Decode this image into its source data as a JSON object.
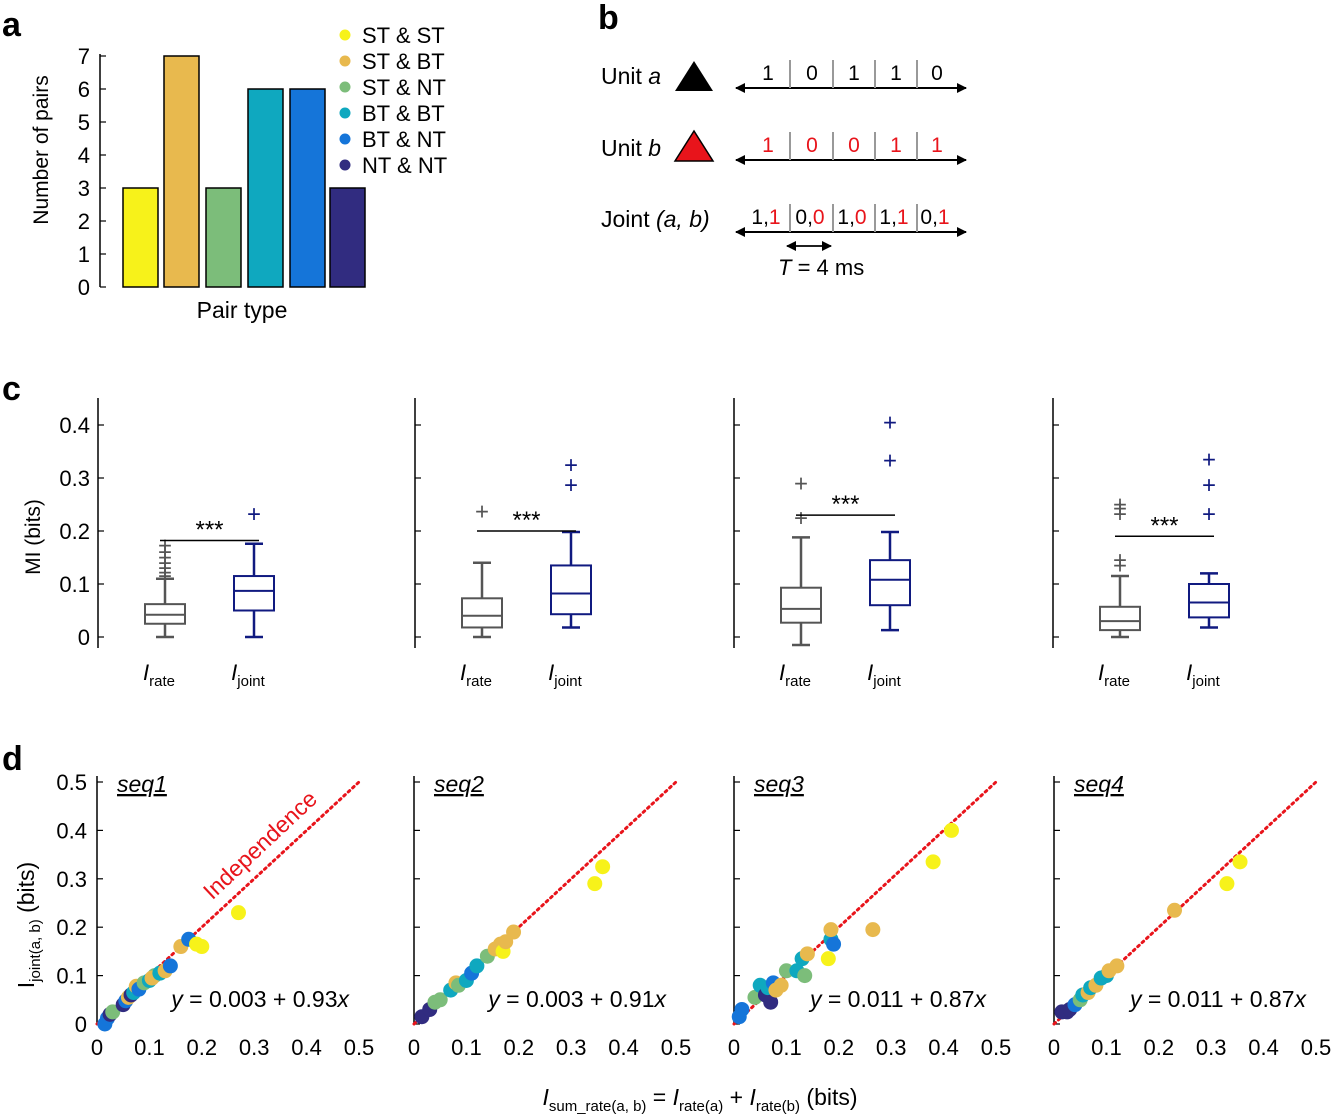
{
  "panel_labels": {
    "a": "a",
    "b": "b",
    "c": "c",
    "d": "d"
  },
  "colors": {
    "ST & ST": "#f7f21a",
    "ST & BT": "#e8b94e",
    "ST & NT": "#7cbd7a",
    "BT & BT": "#0fa8bf",
    "BT & NT": "#1575d9",
    "NT & NT": "#312c80",
    "rate": "#555555",
    "joint": "#101a80",
    "red": "#e8141b"
  },
  "chart_data": [
    {
      "id": "a",
      "type": "bar",
      "categories": [
        "ST & ST",
        "ST & BT",
        "ST & NT",
        "BT & BT",
        "BT & NT",
        "NT & NT"
      ],
      "values": [
        3,
        7,
        3,
        6,
        6,
        3
      ],
      "xlabel": "Pair type",
      "ylabel": "Number of pairs",
      "ylim": [
        0,
        7
      ],
      "yticks": [
        "0",
        "1",
        "2",
        "3",
        "4",
        "5",
        "6",
        "7"
      ],
      "legend": [
        "ST & ST",
        "ST & BT",
        "ST & NT",
        "BT & BT",
        "BT & NT",
        "NT & NT"
      ],
      "legend_position": "right"
    },
    {
      "id": "c",
      "type": "box",
      "ylabel": "MI (bits)",
      "ylim": [
        0,
        0.42
      ],
      "yticks": [
        "0",
        "0.1",
        "0.2",
        "0.3",
        "0.4"
      ],
      "tick_labels": {
        "rate_main": "I",
        "rate_sub": "rate",
        "joint_main": "I",
        "joint_sub": "joint"
      },
      "significance": "***",
      "subplots": [
        {
          "rate": {
            "q1": 0.025,
            "median": 0.042,
            "q3": 0.062,
            "wlo": 0.0,
            "whi": 0.11,
            "outliers": [
              0.115,
              0.122,
              0.13,
              0.14,
              0.15,
              0.16,
              0.173
            ]
          },
          "joint": {
            "q1": 0.05,
            "median": 0.087,
            "q3": 0.115,
            "wlo": 0.0,
            "whi": 0.176,
            "outliers": [
              0.232
            ]
          },
          "bar_y": 0.182
        },
        {
          "rate": {
            "q1": 0.018,
            "median": 0.04,
            "q3": 0.073,
            "wlo": 0.0,
            "whi": 0.14,
            "outliers": [
              0.237
            ]
          },
          "joint": {
            "q1": 0.043,
            "median": 0.082,
            "q3": 0.135,
            "wlo": 0.018,
            "whi": 0.198,
            "outliers": [
              0.287,
              0.325
            ]
          },
          "bar_y": 0.2
        },
        {
          "rate": {
            "q1": 0.027,
            "median": 0.053,
            "q3": 0.093,
            "wlo": -0.015,
            "whi": 0.188,
            "outliers": [
              0.225,
              0.29
            ]
          },
          "joint": {
            "q1": 0.06,
            "median": 0.108,
            "q3": 0.145,
            "wlo": 0.013,
            "whi": 0.198,
            "outliers": [
              0.333,
              0.405
            ]
          },
          "bar_y": 0.23
        },
        {
          "rate": {
            "q1": 0.013,
            "median": 0.03,
            "q3": 0.057,
            "wlo": 0.0,
            "whi": 0.115,
            "outliers": [
              0.135,
              0.145,
              0.232,
              0.242,
              0.25
            ]
          },
          "joint": {
            "q1": 0.037,
            "median": 0.065,
            "q3": 0.1,
            "wlo": 0.018,
            "whi": 0.12,
            "outliers": [
              0.232,
              0.287,
              0.335
            ]
          },
          "bar_y": 0.19
        }
      ]
    },
    {
      "id": "d",
      "type": "scatter",
      "xlim": [
        0,
        0.5
      ],
      "ylim": [
        0,
        0.5
      ],
      "xticks": [
        "0",
        "0.1",
        "0.2",
        "0.3",
        "0.4",
        "0.5"
      ],
      "yticks": [
        "0",
        "0.1",
        "0.2",
        "0.3",
        "0.4",
        "0.5"
      ],
      "ylabel": {
        "main": "I",
        "sub": "joint(a, b)",
        "rest": " (bits)"
      },
      "xlabel": {
        "m1": "I",
        "s1": "sum_rate(a, b)",
        "t1": " = ",
        "m2": "I",
        "s2": "rate(a)",
        "t2": " + ",
        "m3": "I",
        "s3": "rate(b)",
        "t3": " (bits)"
      },
      "reference_line_label": "Independence",
      "subplots": [
        {
          "title": "seq1",
          "fit": {
            "prefix": "y",
            "text": " = 0.003 + 0.93",
            "suffix": "x"
          },
          "points": [
            [
              0.015,
              0.0,
              "BT & NT"
            ],
            [
              0.02,
              0.012,
              "BT & NT"
            ],
            [
              0.025,
              0.02,
              "NT & NT"
            ],
            [
              0.03,
              0.025,
              "ST & NT"
            ],
            [
              0.05,
              0.04,
              "NT & NT"
            ],
            [
              0.055,
              0.048,
              "BT & NT"
            ],
            [
              0.06,
              0.055,
              "ST & BT"
            ],
            [
              0.065,
              0.06,
              "NT & NT"
            ],
            [
              0.07,
              0.065,
              "BT & BT"
            ],
            [
              0.075,
              0.078,
              "ST & BT"
            ],
            [
              0.08,
              0.072,
              "BT & NT"
            ],
            [
              0.09,
              0.085,
              "ST & NT"
            ],
            [
              0.1,
              0.09,
              "BT & BT"
            ],
            [
              0.11,
              0.1,
              "ST & NT"
            ],
            [
              0.105,
              0.095,
              "ST & BT"
            ],
            [
              0.12,
              0.105,
              "BT & BT"
            ],
            [
              0.13,
              0.11,
              "ST & BT"
            ],
            [
              0.14,
              0.12,
              "BT & NT"
            ],
            [
              0.16,
              0.16,
              "ST & BT"
            ],
            [
              0.175,
              0.175,
              "BT & NT"
            ],
            [
              0.19,
              0.165,
              "ST & ST"
            ],
            [
              0.2,
              0.16,
              "ST & ST"
            ],
            [
              0.27,
              0.23,
              "ST & ST"
            ]
          ]
        },
        {
          "title": "seq2",
          "fit": {
            "prefix": "y",
            "text": " = 0.003 + 0.91",
            "suffix": "x"
          },
          "points": [
            [
              0.015,
              0.015,
              "NT & NT"
            ],
            [
              0.03,
              0.03,
              "NT & NT"
            ],
            [
              0.04,
              0.045,
              "ST & NT"
            ],
            [
              0.05,
              0.05,
              "ST & NT"
            ],
            [
              0.07,
              0.07,
              "BT & BT"
            ],
            [
              0.08,
              0.085,
              "ST & BT"
            ],
            [
              0.085,
              0.08,
              "ST & NT"
            ],
            [
              0.1,
              0.09,
              "BT & BT"
            ],
            [
              0.11,
              0.105,
              "BT & NT"
            ],
            [
              0.12,
              0.12,
              "BT & BT"
            ],
            [
              0.14,
              0.14,
              "ST & NT"
            ],
            [
              0.155,
              0.155,
              "ST & BT"
            ],
            [
              0.165,
              0.165,
              "ST & BT"
            ],
            [
              0.17,
              0.15,
              "ST & ST"
            ],
            [
              0.175,
              0.17,
              "ST & BT"
            ],
            [
              0.19,
              0.19,
              "ST & BT"
            ],
            [
              0.345,
              0.29,
              "ST & ST"
            ],
            [
              0.36,
              0.325,
              "ST & ST"
            ]
          ]
        },
        {
          "title": "seq3",
          "fit": {
            "prefix": "y",
            "text": " = 0.011 + 0.87",
            "suffix": "x"
          },
          "points": [
            [
              0.01,
              0.015,
              "BT & NT"
            ],
            [
              0.015,
              0.03,
              "BT & NT"
            ],
            [
              0.04,
              0.055,
              "ST & NT"
            ],
            [
              0.05,
              0.08,
              "BT & BT"
            ],
            [
              0.06,
              0.06,
              "NT & NT"
            ],
            [
              0.065,
              0.075,
              "BT & BT"
            ],
            [
              0.07,
              0.045,
              "NT & NT"
            ],
            [
              0.075,
              0.085,
              "BT & NT"
            ],
            [
              0.08,
              0.07,
              "ST & BT"
            ],
            [
              0.09,
              0.08,
              "ST & BT"
            ],
            [
              0.1,
              0.11,
              "ST & NT"
            ],
            [
              0.12,
              0.11,
              "BT & BT"
            ],
            [
              0.13,
              0.135,
              "BT & BT"
            ],
            [
              0.14,
              0.145,
              "ST & BT"
            ],
            [
              0.135,
              0.1,
              "ST & NT"
            ],
            [
              0.18,
              0.135,
              "ST & ST"
            ],
            [
              0.185,
              0.175,
              "BT & BT"
            ],
            [
              0.19,
              0.165,
              "BT & NT"
            ],
            [
              0.185,
              0.195,
              "ST & BT"
            ],
            [
              0.265,
              0.195,
              "ST & BT"
            ],
            [
              0.38,
              0.335,
              "ST & ST"
            ],
            [
              0.415,
              0.4,
              "ST & ST"
            ]
          ]
        },
        {
          "title": "seq4",
          "fit": {
            "prefix": "y",
            "text": " = 0.011 + 0.87",
            "suffix": "x"
          },
          "points": [
            [
              0.015,
              0.025,
              "NT & NT"
            ],
            [
              0.025,
              0.025,
              "NT & NT"
            ],
            [
              0.03,
              0.03,
              "NT & NT"
            ],
            [
              0.04,
              0.04,
              "BT & NT"
            ],
            [
              0.05,
              0.05,
              "ST & NT"
            ],
            [
              0.055,
              0.06,
              "BT & BT"
            ],
            [
              0.065,
              0.065,
              "ST & BT"
            ],
            [
              0.07,
              0.075,
              "BT & BT"
            ],
            [
              0.08,
              0.08,
              "ST & BT"
            ],
            [
              0.09,
              0.095,
              "BT & BT"
            ],
            [
              0.1,
              0.1,
              "BT & BT"
            ],
            [
              0.105,
              0.11,
              "ST & BT"
            ],
            [
              0.12,
              0.12,
              "ST & BT"
            ],
            [
              0.23,
              0.235,
              "ST & BT"
            ],
            [
              0.33,
              0.29,
              "ST & ST"
            ],
            [
              0.355,
              0.335,
              "ST & ST"
            ]
          ]
        }
      ]
    }
  ],
  "panel_b": {
    "unit_a_label": "Unit ",
    "unit_a_italic": "a",
    "unit_a_bits": [
      "1",
      "0",
      "1",
      "1",
      "0"
    ],
    "unit_b_label": "Unit ",
    "unit_b_italic": "b",
    "unit_b_bits": [
      "1",
      "0",
      "0",
      "1",
      "1"
    ],
    "joint_label": "Joint ",
    "joint_italic": "(a, b)",
    "joint_pairs": [
      [
        "1",
        "1"
      ],
      [
        "0",
        "0"
      ],
      [
        "1",
        "0"
      ],
      [
        "1",
        "1"
      ],
      [
        "0",
        "1"
      ]
    ],
    "comma": ",",
    "t_italic": "T",
    "t_rest": " = 4 ms"
  }
}
